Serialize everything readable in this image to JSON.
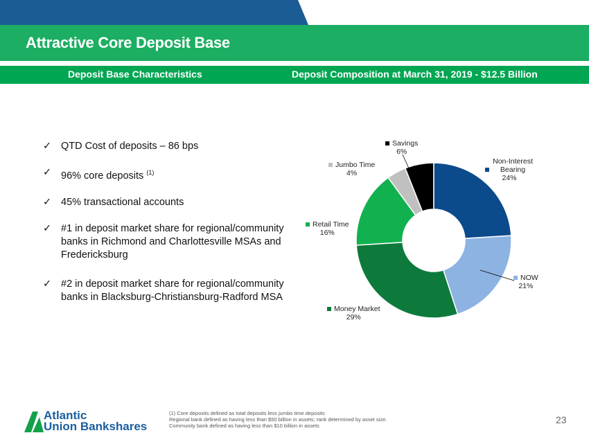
{
  "header": {
    "title": "Attractive Core Deposit Base",
    "left_subtitle": "Deposit Base Characteristics",
    "right_subtitle": "Deposit Composition at March 31, 2019 - $12.5 Billion"
  },
  "bullets": [
    {
      "text": "QTD Cost of deposits – 86 bps",
      "sup": ""
    },
    {
      "text": "96% core deposits ",
      "sup": "(1)"
    },
    {
      "text": "45% transactional accounts",
      "sup": ""
    },
    {
      "text": "#1 in deposit market share for regional/community banks in Richmond and Charlottesville MSAs and Fredericksburg",
      "sup": ""
    },
    {
      "text": "#2 in deposit market share for regional/community banks in Blacksburg-Christiansburg-Radford MSA",
      "sup": ""
    }
  ],
  "check_glyph": "✓",
  "chart_data": {
    "type": "pie",
    "variant": "donut",
    "title": "Deposit Composition at March 31, 2019 - $12.5 Billion",
    "slices": [
      {
        "label": "Non-Interest Bearing",
        "value": 24,
        "pct": "24%",
        "color": "#0b4a8b"
      },
      {
        "label": "NOW",
        "value": 21,
        "pct": "21%",
        "color": "#8db3e2"
      },
      {
        "label": "Money Market",
        "value": 29,
        "pct": "29%",
        "color": "#0d7a3c"
      },
      {
        "label": "Retail Time",
        "value": 16,
        "pct": "16%",
        "color": "#12b14f"
      },
      {
        "label": "Jumbo Time",
        "value": 4,
        "pct": "4%",
        "color": "#c0c0c0"
      },
      {
        "label": "Savings",
        "value": 6,
        "pct": "6%",
        "color": "#000000"
      }
    ]
  },
  "footer": {
    "notes": [
      "(1) Core deposits defined as total deposits less jumbo time deposits",
      "Regional bank defined as having less than $50 billion in assets; rank determined by asset size.",
      "Community bank defined as having less than $10 billion in assets"
    ],
    "page": "23",
    "logo_line1": "Atlantic",
    "logo_line2": "Union Bankshares"
  },
  "colors": {
    "blue": "#1b5c94",
    "green": "#1cae62",
    "subgreen": "#00a652"
  }
}
